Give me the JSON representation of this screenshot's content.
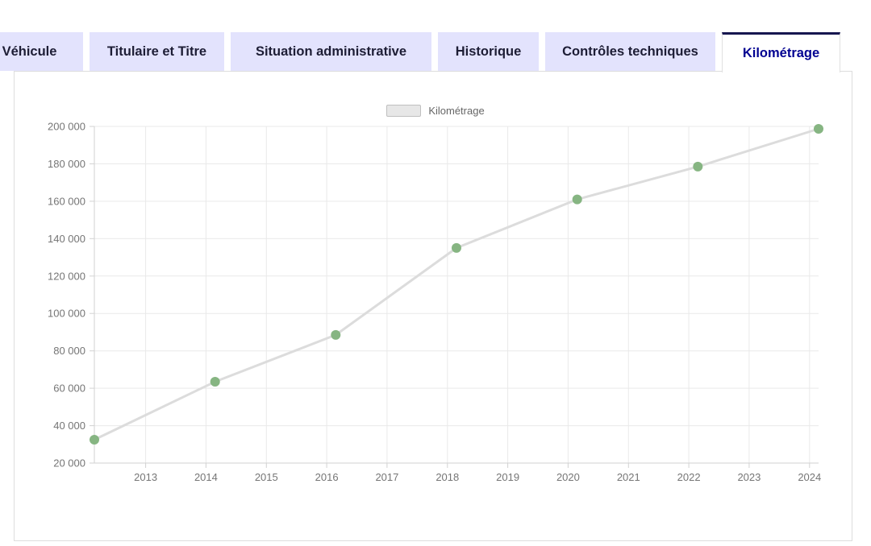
{
  "tabs": {
    "items": [
      {
        "label": "Véhicule",
        "active": false
      },
      {
        "label": "Titulaire et Titre",
        "active": false
      },
      {
        "label": "Situation administrative",
        "active": false
      },
      {
        "label": "Historique",
        "active": false
      },
      {
        "label": "Contrôles techniques",
        "active": false
      },
      {
        "label": "Kilométrage",
        "active": true
      }
    ],
    "active_tab": "Kilométrage",
    "inactive_bg": "#e3e3fd",
    "inactive_text": "#1d1d35",
    "active_text": "#000091",
    "active_top_border": "#16164f"
  },
  "panel": {
    "background": "#ffffff",
    "border_color": "#dddddd"
  },
  "chart_data": {
    "type": "line",
    "title": "",
    "xlabel": "",
    "ylabel": "",
    "legend": {
      "label": "Kilométrage",
      "position": "top-center",
      "swatch_fill": "#e7e7e7",
      "swatch_border": "#bfbfbf"
    },
    "series": [
      {
        "name": "Kilométrage",
        "x": [
          2012.15,
          2014.15,
          2016.15,
          2018.15,
          2020.15,
          2022.15,
          2024.15
        ],
        "values": [
          32500,
          63500,
          88500,
          135000,
          161000,
          178500,
          198700
        ]
      }
    ],
    "xlim": [
      2012.15,
      2024.15
    ],
    "ylim": [
      20000,
      200000
    ],
    "xticks": [
      2013,
      2014,
      2015,
      2016,
      2017,
      2018,
      2019,
      2020,
      2021,
      2022,
      2023,
      2024
    ],
    "xtick_labels": [
      "2013",
      "2014",
      "2015",
      "2016",
      "2017",
      "2018",
      "2019",
      "2020",
      "2021",
      "2022",
      "2023",
      "2024"
    ],
    "yticks": [
      20000,
      40000,
      60000,
      80000,
      100000,
      120000,
      140000,
      160000,
      180000,
      200000
    ],
    "ytick_labels": [
      "20 000",
      "40 000",
      "60 000",
      "80 000",
      "100 000",
      "120 000",
      "140 000",
      "160 000",
      "180 000",
      "200 000"
    ],
    "grid": true,
    "colors": {
      "line": "#dcdcdc",
      "marker": "#86b582",
      "gridline": "#e9e9e9",
      "axis": "#d2d2d2",
      "tick_text": "#757575"
    }
  }
}
